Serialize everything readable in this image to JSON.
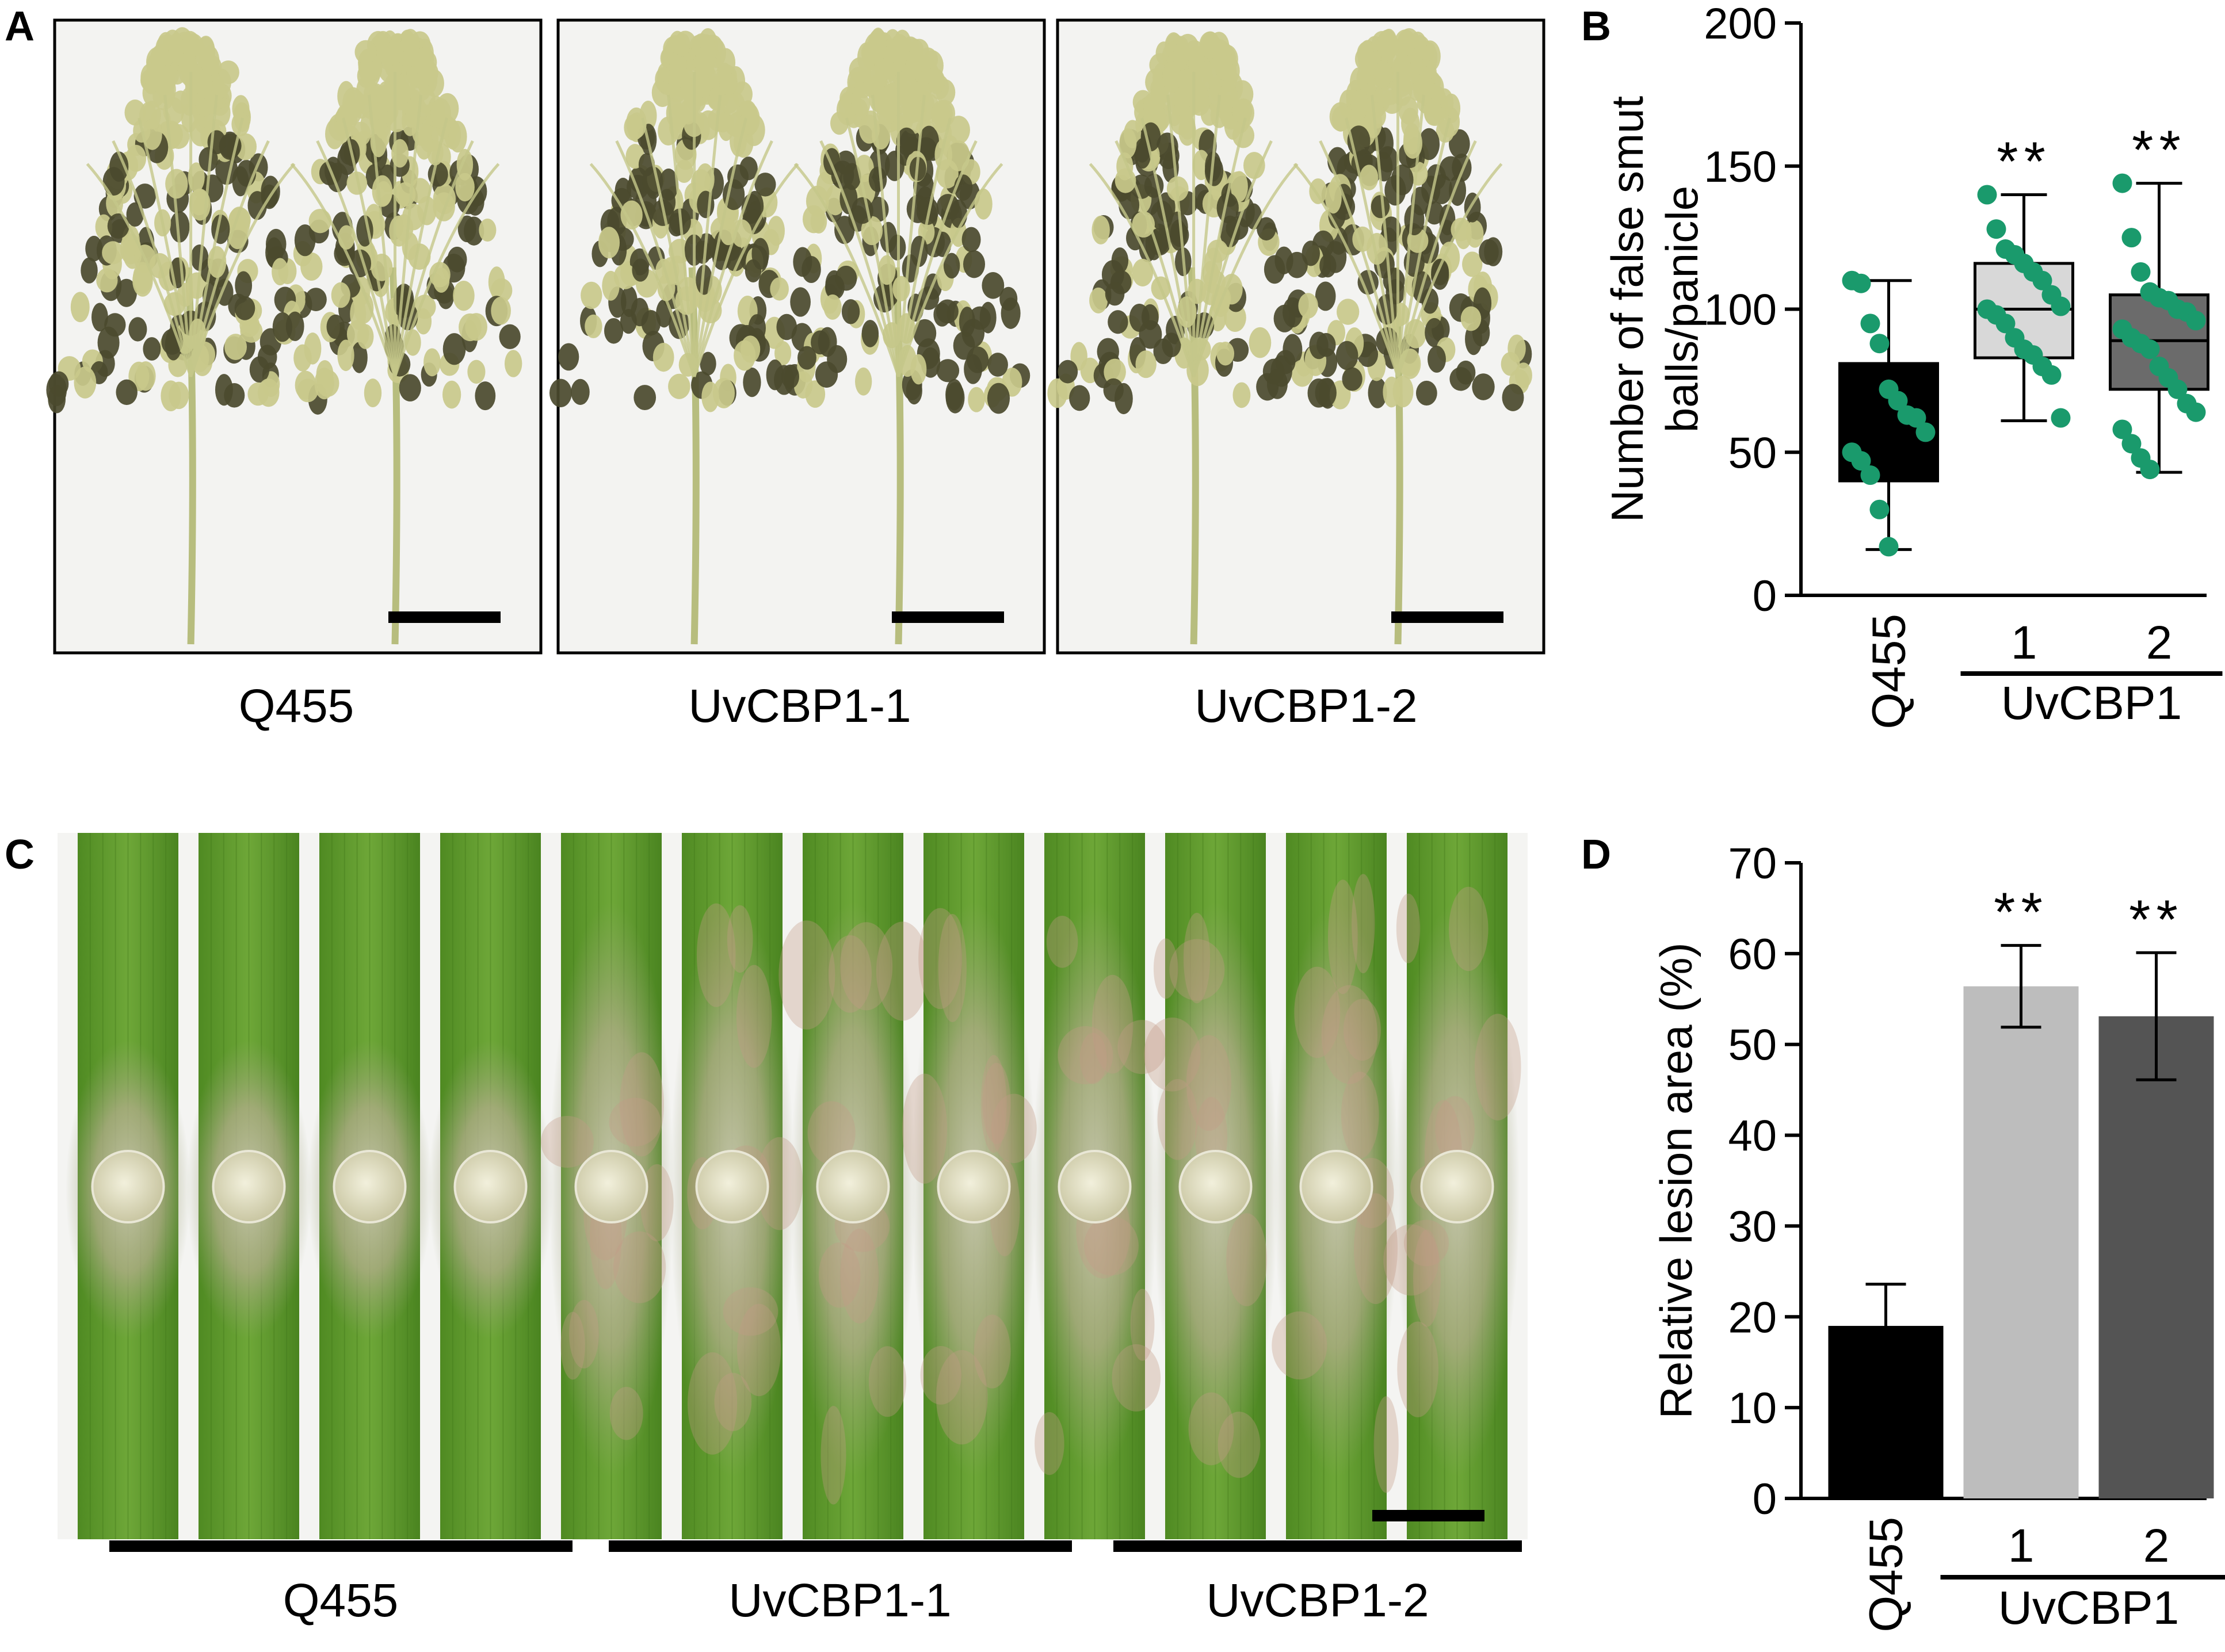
{
  "panels": {
    "A": {
      "letter": "A",
      "labels": [
        "Q455",
        "UvCBP1-1",
        "UvCBP1-2"
      ]
    },
    "C": {
      "letter": "C",
      "labels": [
        "Q455",
        "UvCBP1-1",
        "UvCBP1-2"
      ]
    }
  },
  "colors": {
    "dot": "#1a9a6c",
    "leaf": "#5f9a2c",
    "panicle_dark": "#4b4a2e",
    "panicle_light": "#c9c98b"
  },
  "chart_data": [
    {
      "type": "box",
      "panel": "B",
      "letter": "B",
      "ylabel_lines": [
        "Number of false smut",
        "balls/panicle"
      ],
      "ylim": [
        0,
        200
      ],
      "yticks": [
        0,
        50,
        100,
        150,
        200
      ],
      "categories": [
        "Q455",
        "1",
        "2"
      ],
      "group_label": "UvCBP1",
      "group_span": [
        1,
        2
      ],
      "significance": [
        "",
        "**",
        "**"
      ],
      "boxes": [
        {
          "min": 16,
          "q1": 40,
          "median": 62,
          "q3": 81,
          "max": 110,
          "fill": "#000000",
          "points": [
            110,
            109,
            95,
            88,
            72,
            68,
            63,
            62,
            57,
            50,
            47,
            42,
            30,
            17
          ]
        },
        {
          "min": 61,
          "q1": 83,
          "median": 100,
          "q3": 116,
          "max": 140,
          "fill": "#d8d8d8",
          "points": [
            140,
            128,
            121,
            119,
            116,
            113,
            110,
            105,
            101,
            100,
            98,
            95,
            90,
            86,
            84,
            80,
            77,
            62
          ]
        },
        {
          "min": 43,
          "q1": 72,
          "median": 89,
          "q3": 105,
          "max": 144,
          "fill": "#6b6b6b",
          "points": [
            144,
            125,
            113,
            106,
            104,
            103,
            100,
            99,
            96,
            93,
            90,
            88,
            86,
            80,
            76,
            72,
            67,
            64,
            58,
            53,
            48,
            44
          ]
        }
      ]
    },
    {
      "type": "bar",
      "panel": "D",
      "letter": "D",
      "ylabel": "Relative lesion area (%)",
      "ylim": [
        0,
        70
      ],
      "yticks": [
        0,
        10,
        20,
        30,
        40,
        50,
        60,
        70
      ],
      "categories": [
        "Q455",
        "1",
        "2"
      ],
      "group_label": "UvCBP1",
      "group_span": [
        1,
        2
      ],
      "values": [
        19,
        56.4,
        53.1
      ],
      "errors": [
        4.6,
        4.5,
        7
      ],
      "significance": [
        "",
        "**",
        "**"
      ],
      "colors": [
        "#000000",
        "#bdbdbd",
        "#545454"
      ]
    }
  ]
}
